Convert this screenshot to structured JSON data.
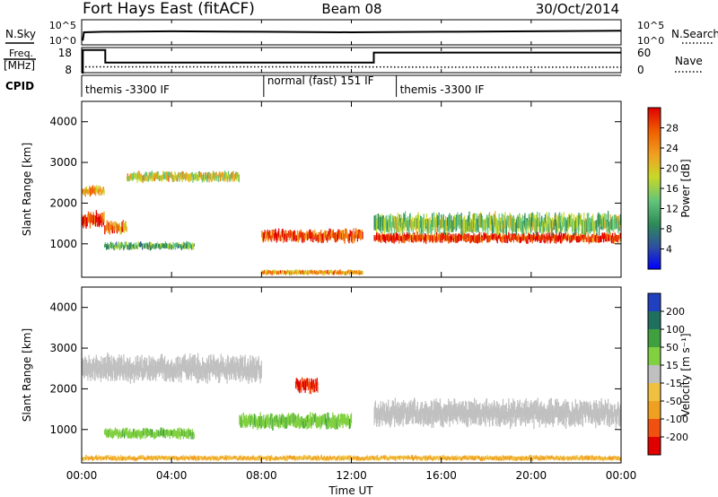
{
  "header": {
    "radar": "Fort Hays East (fitACF)",
    "beam": "Beam 08",
    "date": "30/Oct/2014"
  },
  "noise_panel": {
    "left_label": "N.Sky",
    "right_label": "N.Search",
    "left_ticks": [
      "10^5",
      "10^0"
    ],
    "right_ticks": [
      "10^5",
      "10^0"
    ]
  },
  "freq_panel": {
    "left_label_line1": "Freq.",
    "left_label_line2": "[MHz]",
    "right_label": "Nave",
    "left_ticks": [
      "18",
      "8"
    ],
    "right_ticks": [
      "60",
      "0"
    ]
  },
  "cpid_panel": {
    "label": "CPID",
    "segments": [
      {
        "label": "themis -3300 IF",
        "start_hour": 0,
        "end_hour": 8.1
      },
      {
        "label": "normal (fast) 151 IF",
        "start_hour": 8.1,
        "end_hour": 14
      },
      {
        "label": "themis -3300 IF",
        "start_hour": 14,
        "end_hour": 24
      }
    ]
  },
  "power_panel": {
    "ylabel": "Slant Range [km]",
    "yticks": [
      "1000",
      "2000",
      "3000",
      "4000"
    ],
    "colorbar_label": "Power [dB]",
    "colorbar_ticks": [
      "4",
      "8",
      "12",
      "16",
      "20",
      "24",
      "28"
    ]
  },
  "velocity_panel": {
    "ylabel": "Slant Range [km]",
    "yticks": [
      "1000",
      "2000",
      "3000",
      "4000"
    ],
    "colorbar_label": "Velocity [m s⁻¹]",
    "colorbar_ticks": [
      "200",
      "100",
      "50",
      "15",
      "-15",
      "-50",
      "-100",
      "-200"
    ]
  },
  "xaxis": {
    "label": "Time UT",
    "ticks": [
      "00:00",
      "04:00",
      "08:00",
      "12:00",
      "16:00",
      "20:00",
      "00:00"
    ]
  },
  "colors": {
    "power": [
      "#0000ff",
      "#2f4fa0",
      "#2e8b57",
      "#62c47a",
      "#c8d828",
      "#f0a020",
      "#f06000",
      "#e00000"
    ],
    "velocity": [
      "#2040c0",
      "#207060",
      "#40a040",
      "#80d040",
      "#c0c0c0",
      "#f0c040",
      "#f0a020",
      "#f05010",
      "#e00000"
    ]
  },
  "chart_data": [
    {
      "type": "line",
      "title": "",
      "series": [
        {
          "name": "N.Sky",
          "x": [
            0,
            0.05,
            0.1,
            1,
            4,
            8,
            12,
            16,
            20,
            24
          ],
          "y": [
            1,
            1,
            2.5,
            2.6,
            2.7,
            2.6,
            2.5,
            2.6,
            2.7,
            2.8
          ]
        }
      ],
      "xlim": [
        0,
        24
      ],
      "ylim": [
        0,
        5
      ]
    },
    {
      "type": "line",
      "title": "",
      "series": [
        {
          "name": "Freq.",
          "x": [
            0,
            0.05,
            0.05,
            1.05,
            1.05,
            13,
            13,
            24
          ],
          "y": [
            8,
            8,
            17,
            17,
            12,
            12,
            16,
            16
          ]
        },
        {
          "name": "Nave",
          "x": [
            0,
            1,
            4,
            8,
            12,
            16,
            20,
            24
          ],
          "y": [
            14,
            14,
            14,
            14,
            14,
            13,
            13,
            13
          ]
        }
      ],
      "xlim": [
        0,
        24
      ],
      "ylim": [
        8,
        18
      ]
    },
    {
      "type": "heatmap",
      "title": "",
      "xlabel": "Time UT",
      "ylabel": "Slant Range [km]",
      "xlim": [
        0,
        24
      ],
      "ylim": [
        180,
        4500
      ],
      "zlabel": "Power [dB]",
      "zlim": [
        0,
        30
      ],
      "bands": [
        {
          "start_hour": 0,
          "end_hour": 1,
          "range_km": 1600,
          "width_km": 300,
          "power_db": 28
        },
        {
          "start_hour": 0,
          "end_hour": 1,
          "range_km": 2300,
          "width_km": 200,
          "power_db": 22
        },
        {
          "start_hour": 1,
          "end_hour": 2,
          "range_km": 1400,
          "width_km": 250,
          "power_db": 24
        },
        {
          "start_hour": 2,
          "end_hour": 7,
          "range_km": 2650,
          "width_km": 200,
          "power_db": 18
        },
        {
          "start_hour": 1,
          "end_hour": 5,
          "range_km": 950,
          "width_km": 150,
          "power_db": 12
        },
        {
          "start_hour": 8,
          "end_hour": 12.5,
          "range_km": 1200,
          "width_km": 250,
          "power_db": 26
        },
        {
          "start_hour": 8,
          "end_hour": 12.5,
          "range_km": 300,
          "width_km": 100,
          "power_db": 22
        },
        {
          "start_hour": 13,
          "end_hour": 24,
          "range_km": 1150,
          "width_km": 200,
          "power_db": 28
        },
        {
          "start_hour": 13,
          "end_hour": 24,
          "range_km": 1500,
          "width_km": 400,
          "power_db": 14
        }
      ]
    },
    {
      "type": "heatmap",
      "title": "",
      "xlabel": "Time UT",
      "ylabel": "Slant Range [km]",
      "xlim": [
        0,
        24
      ],
      "ylim": [
        180,
        4500
      ],
      "zlabel": "Velocity [m s⁻¹]",
      "zlim": [
        -250,
        250
      ],
      "bands": [
        {
          "start_hour": 0,
          "end_hour": 8,
          "range_km": 2500,
          "width_km": 500,
          "velocity": 0
        },
        {
          "start_hour": 1,
          "end_hour": 5,
          "range_km": 900,
          "width_km": 200,
          "velocity": 40
        },
        {
          "start_hour": 7,
          "end_hour": 12,
          "range_km": 1200,
          "width_km": 300,
          "velocity": 40
        },
        {
          "start_hour": 9.5,
          "end_hour": 10.5,
          "range_km": 2100,
          "width_km": 300,
          "velocity": -200
        },
        {
          "start_hour": 13,
          "end_hour": 24,
          "range_km": 1400,
          "width_km": 500,
          "velocity": 0
        },
        {
          "start_hour": 0,
          "end_hour": 24,
          "range_km": 300,
          "width_km": 100,
          "velocity": -50
        }
      ]
    }
  ]
}
